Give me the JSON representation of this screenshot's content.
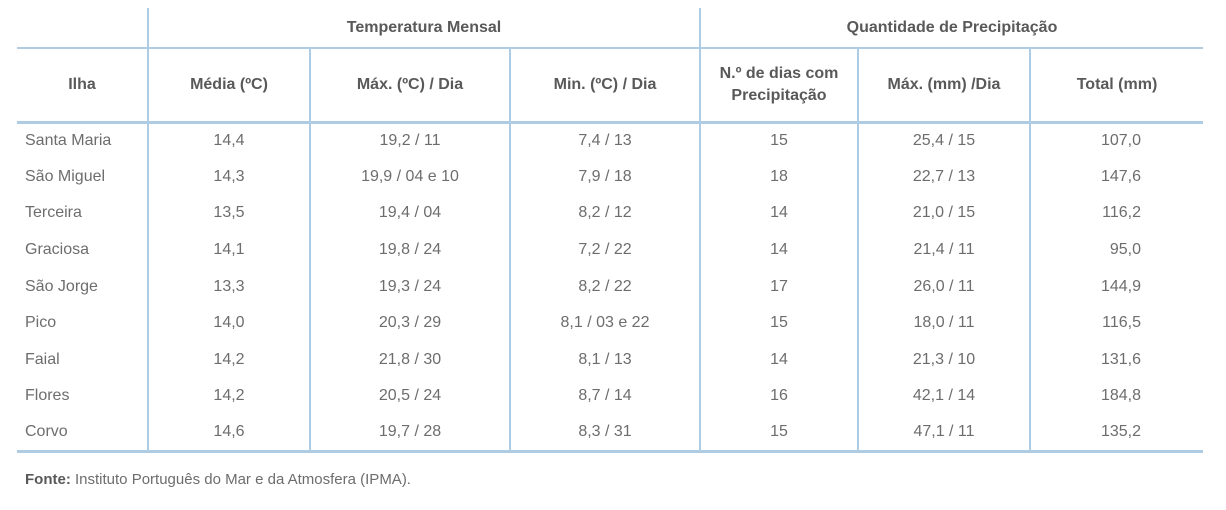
{
  "table": {
    "groups": {
      "temperature": "Temperatura Mensal",
      "precipitation": "Quantidade de Precipitação"
    },
    "columns": [
      "Ilha",
      "Média (ºC)",
      "Máx. (ºC) / Dia",
      "Min. (ºC) / Dia",
      "N.º de dias com Precipitação",
      "Máx. (mm) /Dia",
      "Total (mm)"
    ],
    "column_keys": [
      "island",
      "media-c",
      "max-c-dia",
      "min-c-dia",
      "dias-precipitacao",
      "max-mm-dia",
      "total-mm"
    ],
    "rows": [
      [
        "Santa Maria",
        "14,4",
        "19,2 / 11",
        "7,4 / 13",
        "15",
        "25,4 / 15",
        "107,0"
      ],
      [
        "São Miguel",
        "14,3",
        "19,9 / 04 e 10",
        "7,9 / 18",
        "18",
        "22,7 / 13",
        "147,6"
      ],
      [
        "Terceira",
        "13,5",
        "19,4 / 04",
        "8,2 / 12",
        "14",
        "21,0 / 15",
        "116,2"
      ],
      [
        "Graciosa",
        "14,1",
        "19,8 / 24",
        "7,2 / 22",
        "14",
        "21,4 / 11",
        "95,0"
      ],
      [
        "São Jorge",
        "13,3",
        "19,3 / 24",
        "8,2 / 22",
        "17",
        "26,0 / 11",
        "144,9"
      ],
      [
        "Pico",
        "14,0",
        "20,3 / 29",
        "8,1 / 03 e 22",
        "15",
        "18,0 / 11",
        "116,5"
      ],
      [
        "Faial",
        "14,2",
        "21,8 / 30",
        "8,1 / 13",
        "14",
        "21,3 / 10",
        "131,6"
      ],
      [
        "Flores",
        "14,2",
        "20,5 / 24",
        "8,7 / 14",
        "16",
        "42,1 / 14",
        "184,8"
      ],
      [
        "Corvo",
        "14,6",
        "19,7 / 28",
        "8,3 / 31",
        "15",
        "47,1 / 11",
        "135,2"
      ]
    ]
  },
  "footer": {
    "source_label": "Fonte:",
    "source_text": " Instituto Português do Mar e da Atmosfera (IPMA)."
  },
  "colors": {
    "border": "#aecde5",
    "text": "#6d6d6d",
    "header-text": "#595959"
  }
}
